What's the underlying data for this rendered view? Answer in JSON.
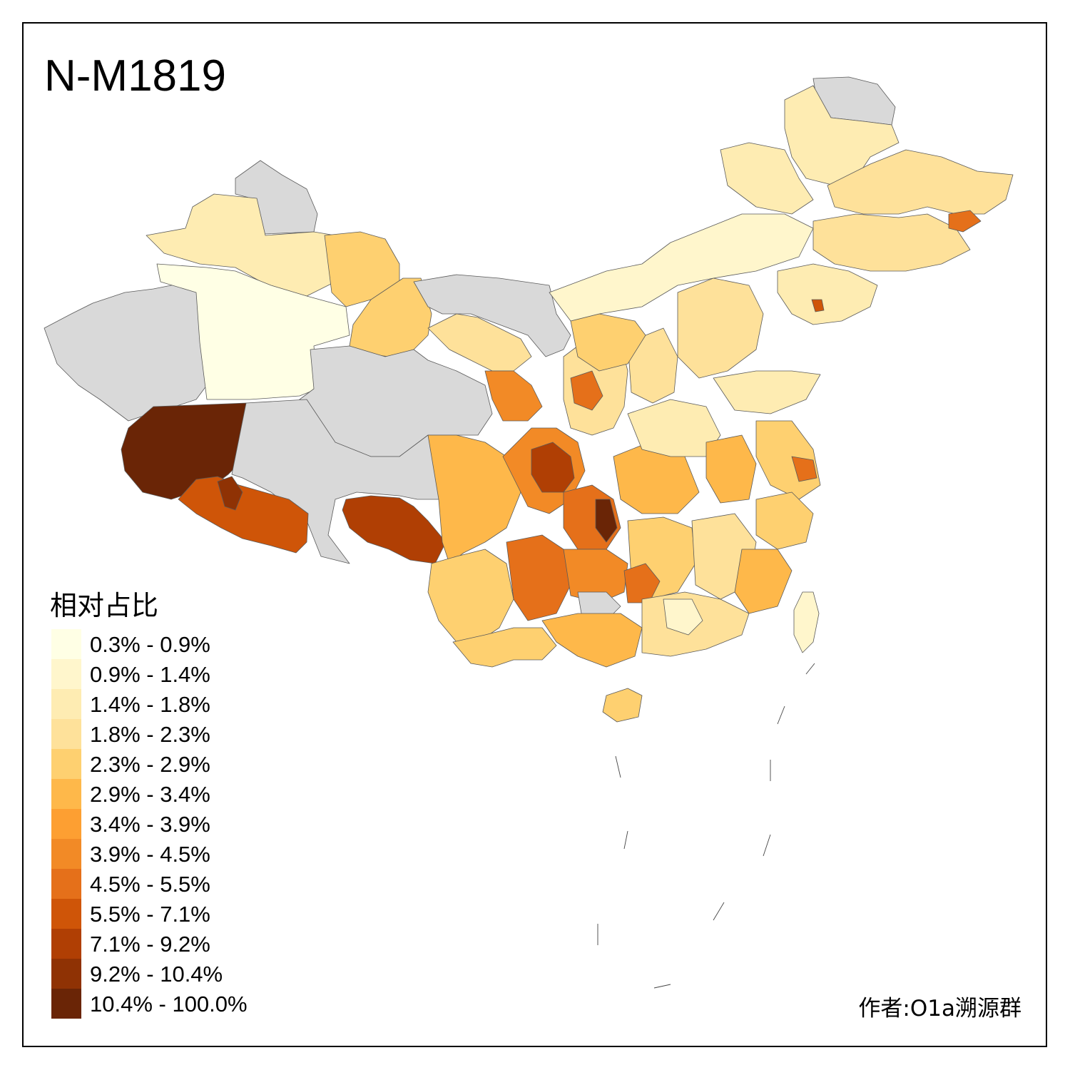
{
  "map": {
    "title": "N-M1819",
    "legend_title": "相对占比",
    "author_credit": "作者:O1a溯源群",
    "no_data_color": "#d9d9d9",
    "legend": [
      {
        "label": "0.3% - 0.9%",
        "color": "#ffffe5"
      },
      {
        "label": "0.9% - 1.4%",
        "color": "#fff6cc"
      },
      {
        "label": "1.4% - 1.8%",
        "color": "#feecb2"
      },
      {
        "label": "1.8% - 2.3%",
        "color": "#fee19a"
      },
      {
        "label": "2.3% - 2.9%",
        "color": "#fed070"
      },
      {
        "label": "2.9% - 3.4%",
        "color": "#feb84a"
      },
      {
        "label": "3.4% - 3.9%",
        "color": "#fd9f32"
      },
      {
        "label": "3.9% - 4.5%",
        "color": "#f28a26"
      },
      {
        "label": "4.5% - 5.5%",
        "color": "#e5701a"
      },
      {
        "label": "5.5% - 7.1%",
        "color": "#cf5508"
      },
      {
        "label": "7.1% - 9.2%",
        "color": "#b03f04"
      },
      {
        "label": "9.2% - 10.4%",
        "color": "#8f3204"
      },
      {
        "label": "10.4% - 100.0%",
        "color": "#6a2506"
      }
    ]
  }
}
